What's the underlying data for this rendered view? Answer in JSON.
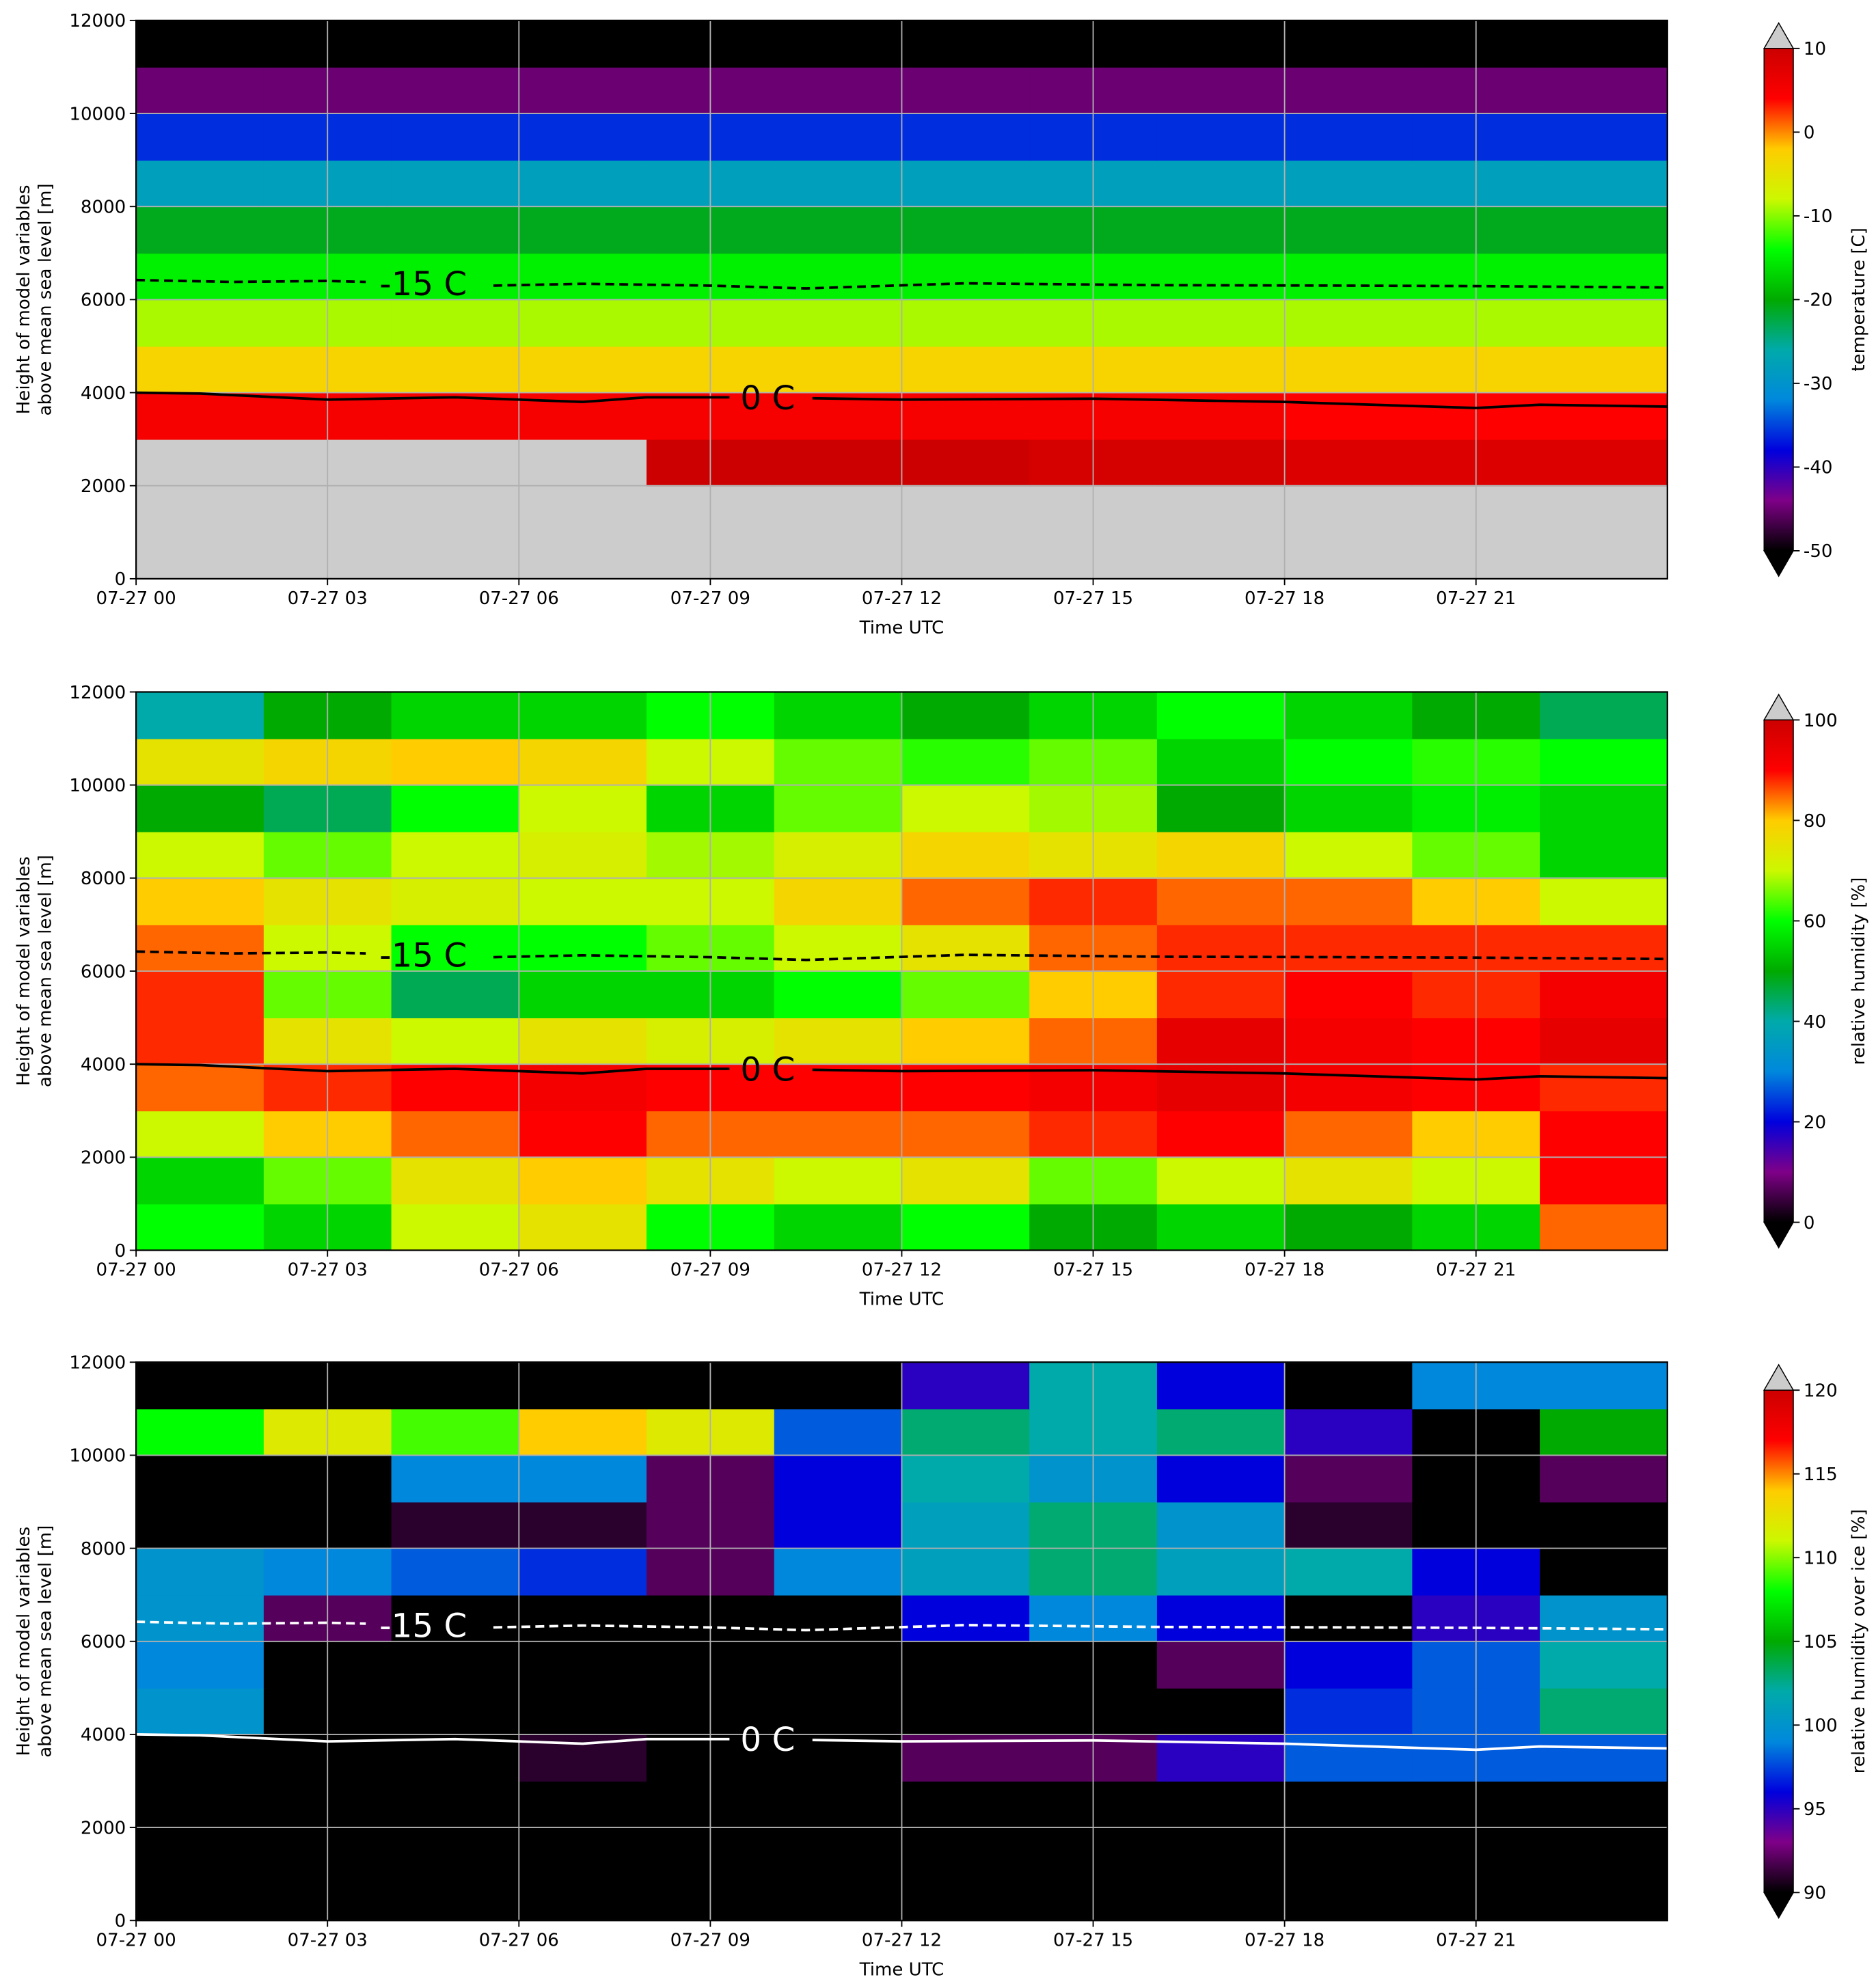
{
  "chart_data": [
    {
      "type": "heatmap",
      "xlabel": "Time UTC",
      "ylabel": [
        "Height of model variables",
        "above mean sea level [m]"
      ],
      "colorbar_label": "temperature [C]",
      "xlim": [
        0,
        24
      ],
      "ylim": [
        0,
        12000
      ],
      "xticks": [
        {
          "value": 0,
          "label": "07-27 00"
        },
        {
          "value": 3,
          "label": "07-27 03"
        },
        {
          "value": 6,
          "label": "07-27 06"
        },
        {
          "value": 9,
          "label": "07-27 09"
        },
        {
          "value": 12,
          "label": "07-27 12"
        },
        {
          "value": 15,
          "label": "07-27 15"
        },
        {
          "value": 18,
          "label": "07-27 18"
        },
        {
          "value": 21,
          "label": "07-27 21"
        }
      ],
      "yticks": [
        0,
        2000,
        4000,
        6000,
        8000,
        10000,
        12000
      ],
      "grid": true,
      "clim": [
        -50,
        10
      ],
      "cticks": [
        -50,
        -40,
        -30,
        -20,
        -10,
        0,
        10
      ],
      "colormap": [
        "#000000",
        "#7f0088",
        "#0000dd",
        "#0088dd",
        "#00aaaa",
        "#00aa00",
        "#00ff00",
        "#ccf800",
        "#ffcc00",
        "#ff0000",
        "#cc0000"
      ],
      "over_color": "#cccccc",
      "under_color": "#000000",
      "x_edges": [
        0,
        2,
        4,
        6,
        8,
        10,
        12,
        14,
        16,
        18,
        20,
        22,
        24
      ],
      "y_edges": [
        0,
        1000,
        2000,
        3000,
        4000,
        5000,
        6000,
        7000,
        8000,
        9000,
        10000,
        11000,
        12000
      ],
      "values": [
        [
          15,
          15,
          15,
          15,
          15,
          15,
          15,
          15,
          15,
          15,
          15,
          15
        ],
        [
          15,
          15,
          15,
          15,
          15,
          15,
          15,
          15,
          15,
          15,
          15,
          15
        ],
        [
          12,
          11,
          11,
          11,
          10,
          10,
          10,
          9,
          9,
          8,
          8,
          8
        ],
        [
          5,
          5,
          5,
          5,
          5,
          5,
          5,
          5,
          5,
          4,
          4,
          4
        ],
        [
          -3,
          -3,
          -3,
          -3,
          -3,
          -3,
          -3,
          -3,
          -3,
          -3,
          -3,
          -3
        ],
        [
          -9,
          -9,
          -9,
          -9,
          -9,
          -9,
          -9,
          -9,
          -9,
          -9,
          -9,
          -9
        ],
        [
          -15,
          -15,
          -15,
          -15,
          -15,
          -15,
          -15,
          -15,
          -15,
          -15,
          -15,
          -15
        ],
        [
          -21,
          -21,
          -21,
          -21,
          -21,
          -21,
          -21,
          -21,
          -21,
          -21,
          -21,
          -21
        ],
        [
          -28,
          -28,
          -28,
          -28,
          -28,
          -28,
          -28,
          -28,
          -28,
          -28,
          -28,
          -28
        ],
        [
          -36,
          -36,
          -36,
          -36,
          -36,
          -36,
          -36,
          -36,
          -36,
          -36,
          -36,
          -36
        ],
        [
          -45,
          -45,
          -45,
          -45,
          -45,
          -45,
          -45,
          -45,
          -45,
          -45,
          -45,
          -45
        ],
        [
          -55,
          -55,
          -55,
          -55,
          -55,
          -55,
          -55,
          -55,
          -55,
          -55,
          -55,
          -55
        ]
      ],
      "contours": [
        {
          "name": "-15 C",
          "color": "#000000",
          "dashed": true,
          "x": [
            0,
            1.5,
            3,
            3.6,
            4.5,
            5.6,
            7,
            9,
            10.5,
            13,
            16,
            19,
            21,
            24
          ],
          "values": [
            6420,
            6380,
            6400,
            6380,
            null,
            6300,
            6340,
            6300,
            6240,
            6350,
            6310,
            6300,
            6290,
            6260
          ]
        },
        {
          "name": "0 C",
          "color": "#000000",
          "dashed": false,
          "x": [
            0,
            1,
            3,
            5,
            7,
            8,
            9.3,
            9.9,
            10.6,
            12,
            15,
            18,
            21,
            22,
            24
          ],
          "values": [
            4000,
            3980,
            3850,
            3900,
            3800,
            3900,
            3900,
            null,
            3880,
            3850,
            3870,
            3800,
            3670,
            3740,
            3700
          ]
        }
      ]
    },
    {
      "type": "heatmap",
      "xlabel": "Time UTC",
      "ylabel": [
        "Height of model variables",
        "above mean sea level [m]"
      ],
      "colorbar_label": "relative humidity [%]",
      "xlim": [
        0,
        24
      ],
      "ylim": [
        0,
        12000
      ],
      "xticks": [
        {
          "value": 0,
          "label": "07-27 00"
        },
        {
          "value": 3,
          "label": "07-27 03"
        },
        {
          "value": 6,
          "label": "07-27 06"
        },
        {
          "value": 9,
          "label": "07-27 09"
        },
        {
          "value": 12,
          "label": "07-27 12"
        },
        {
          "value": 15,
          "label": "07-27 15"
        },
        {
          "value": 18,
          "label": "07-27 18"
        },
        {
          "value": 21,
          "label": "07-27 21"
        }
      ],
      "yticks": [
        0,
        2000,
        4000,
        6000,
        8000,
        10000,
        12000
      ],
      "grid": true,
      "clim": [
        0,
        100
      ],
      "cticks": [
        0,
        20,
        40,
        60,
        80,
        100
      ],
      "colormap": [
        "#000000",
        "#7f0088",
        "#0000dd",
        "#0088dd",
        "#00aaaa",
        "#00aa00",
        "#00ff00",
        "#ccf800",
        "#ffcc00",
        "#ff0000",
        "#cc0000"
      ],
      "over_color": "#cccccc",
      "under_color": "#000000",
      "x_edges": [
        0,
        2,
        4,
        6,
        8,
        10,
        12,
        14,
        16,
        18,
        20,
        22,
        24
      ],
      "y_edges": [
        0,
        1000,
        2000,
        3000,
        4000,
        5000,
        6000,
        7000,
        8000,
        9000,
        10000,
        11000,
        12000
      ],
      "values": [
        [
          60,
          55,
          70,
          75,
          60,
          55,
          60,
          50,
          55,
          50,
          55,
          85
        ],
        [
          55,
          65,
          75,
          80,
          75,
          70,
          75,
          65,
          70,
          75,
          70,
          90
        ],
        [
          70,
          80,
          85,
          90,
          85,
          85,
          85,
          88,
          90,
          85,
          80,
          90
        ],
        [
          85,
          88,
          90,
          92,
          90,
          90,
          90,
          92,
          95,
          92,
          90,
          88
        ],
        [
          88,
          75,
          70,
          75,
          72,
          75,
          80,
          85,
          95,
          92,
          90,
          95
        ],
        [
          88,
          65,
          45,
          55,
          55,
          60,
          65,
          80,
          88,
          90,
          88,
          92
        ],
        [
          85,
          70,
          60,
          60,
          65,
          70,
          75,
          85,
          88,
          88,
          88,
          88
        ],
        [
          80,
          75,
          72,
          70,
          70,
          78,
          85,
          88,
          85,
          85,
          80,
          70
        ],
        [
          70,
          65,
          70,
          72,
          68,
          72,
          78,
          75,
          78,
          70,
          65,
          55
        ],
        [
          50,
          45,
          60,
          70,
          55,
          65,
          70,
          68,
          50,
          55,
          58,
          55
        ],
        [
          75,
          78,
          80,
          78,
          70,
          65,
          62,
          65,
          55,
          60,
          62,
          60
        ],
        [
          40,
          50,
          55,
          55,
          60,
          55,
          50,
          55,
          60,
          55,
          50,
          45
        ]
      ],
      "contours": [
        {
          "name": "-15 C",
          "color": "#000000",
          "dashed": true,
          "x": [
            0,
            1.5,
            3,
            3.6,
            4.5,
            5.6,
            7,
            9,
            10.5,
            13,
            16,
            19,
            21,
            24
          ],
          "values": [
            6420,
            6380,
            6400,
            6380,
            null,
            6300,
            6340,
            6300,
            6240,
            6350,
            6310,
            6300,
            6290,
            6260
          ]
        },
        {
          "name": "0 C",
          "color": "#000000",
          "dashed": false,
          "x": [
            0,
            1,
            3,
            5,
            7,
            8,
            9.3,
            9.9,
            10.6,
            12,
            15,
            18,
            21,
            22,
            24
          ],
          "values": [
            4000,
            3980,
            3850,
            3900,
            3800,
            3900,
            3900,
            null,
            3880,
            3850,
            3870,
            3800,
            3670,
            3740,
            3700
          ]
        }
      ]
    },
    {
      "type": "heatmap",
      "xlabel": "Time UTC",
      "ylabel": [
        "Height of model variables",
        "above mean sea level [m]"
      ],
      "colorbar_label": "relative humidity over ice [%]",
      "xlim": [
        0,
        24
      ],
      "ylim": [
        0,
        12000
      ],
      "xticks": [
        {
          "value": 0,
          "label": "07-27 00"
        },
        {
          "value": 3,
          "label": "07-27 03"
        },
        {
          "value": 6,
          "label": "07-27 06"
        },
        {
          "value": 9,
          "label": "07-27 09"
        },
        {
          "value": 12,
          "label": "07-27 12"
        },
        {
          "value": 15,
          "label": "07-27 15"
        },
        {
          "value": 18,
          "label": "07-27 18"
        },
        {
          "value": 21,
          "label": "07-27 21"
        }
      ],
      "yticks": [
        0,
        2000,
        4000,
        6000,
        8000,
        10000,
        12000
      ],
      "grid": true,
      "clim": [
        90,
        120
      ],
      "cticks": [
        90,
        95,
        100,
        105,
        110,
        115,
        120
      ],
      "colormap": [
        "#000000",
        "#7f0088",
        "#0000dd",
        "#0088dd",
        "#00aaaa",
        "#00aa00",
        "#00ff00",
        "#ccf800",
        "#ffcc00",
        "#ff0000",
        "#cc0000"
      ],
      "over_color": "#cccccc",
      "under_color": "#000000",
      "x_edges": [
        0,
        2,
        4,
        6,
        8,
        10,
        12,
        14,
        16,
        18,
        20,
        22,
        24
      ],
      "y_edges": [
        0,
        1000,
        2000,
        3000,
        4000,
        5000,
        6000,
        7000,
        8000,
        9000,
        10000,
        11000,
        12000
      ],
      "values": [
        [
          80,
          80,
          80,
          80,
          80,
          80,
          80,
          80,
          80,
          80,
          80,
          80
        ],
        [
          80,
          80,
          80,
          80,
          80,
          80,
          80,
          80,
          80,
          80,
          80,
          80
        ],
        [
          80,
          80,
          80,
          80,
          80,
          80,
          80,
          80,
          80,
          80,
          80,
          80
        ],
        [
          80,
          80,
          80,
          91,
          80,
          80,
          92,
          92,
          95,
          98,
          98,
          98
        ],
        [
          100,
          80,
          80,
          80,
          80,
          80,
          80,
          80,
          80,
          97,
          98,
          103
        ],
        [
          99,
          80,
          80,
          80,
          80,
          80,
          80,
          80,
          92,
          96,
          98,
          102
        ],
        [
          100,
          92,
          80,
          80,
          80,
          80,
          96,
          99,
          96,
          80,
          95,
          100
        ],
        [
          100,
          99,
          98,
          97,
          92,
          99,
          101,
          103,
          101,
          102,
          96,
          80
        ],
        [
          80,
          80,
          91,
          91,
          92,
          96,
          101,
          103,
          100,
          91,
          80,
          80
        ],
        [
          80,
          80,
          99,
          99,
          92,
          96,
          102,
          100,
          96,
          92,
          80,
          92
        ],
        [
          108,
          112,
          109,
          114,
          112,
          98,
          103,
          102,
          103,
          95,
          80,
          105
        ],
        [
          80,
          80,
          80,
          80,
          80,
          80,
          95,
          102,
          96,
          80,
          99,
          99
        ]
      ],
      "contours": [
        {
          "name": "-15 C",
          "color": "#ffffff",
          "dashed": true,
          "x": [
            0,
            1.5,
            3,
            3.6,
            4.5,
            5.6,
            7,
            9,
            10.5,
            13,
            16,
            19,
            21,
            24
          ],
          "values": [
            6420,
            6380,
            6400,
            6380,
            null,
            6300,
            6340,
            6300,
            6240,
            6350,
            6310,
            6300,
            6290,
            6260
          ]
        },
        {
          "name": "0 C",
          "color": "#ffffff",
          "dashed": false,
          "x": [
            0,
            1,
            3,
            5,
            7,
            8,
            9.3,
            9.9,
            10.6,
            12,
            15,
            18,
            21,
            22,
            24
          ],
          "values": [
            4000,
            3980,
            3850,
            3900,
            3800,
            3900,
            3900,
            null,
            3880,
            3850,
            3870,
            3800,
            3670,
            3740,
            3700
          ]
        }
      ]
    }
  ]
}
